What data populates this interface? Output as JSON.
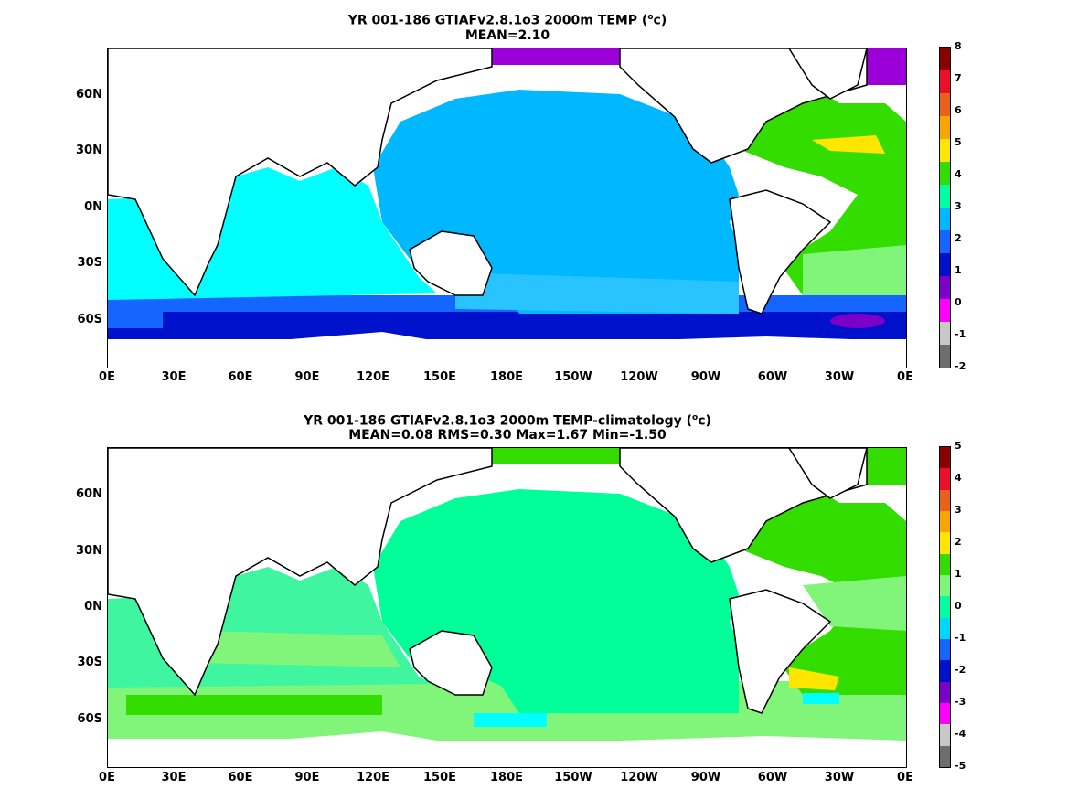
{
  "panels": [
    {
      "id": "top",
      "title_line1": "YR 001-186 GTIAFv2.8.1o3 2000m TEMP (",
      "title_sup": "o",
      "title_line1_end": "c)",
      "title_line2": "MEAN=2.10",
      "y_ticks": [
        "60N",
        "30N",
        "0N",
        "30S",
        "60S"
      ],
      "x_ticks": [
        "0E",
        "30E",
        "60E",
        "90E",
        "120E",
        "150E",
        "180E",
        "150W",
        "120W",
        "90W",
        "60W",
        "30W",
        "0E"
      ],
      "colorbar_labels": [
        "8",
        "7",
        "6",
        "5",
        "4",
        "3",
        "2",
        "1",
        "0",
        "-1",
        "-2"
      ],
      "colorbar_colors": [
        "#8b0000",
        "#e8102a",
        "#e8621c",
        "#f7a500",
        "#ffe600",
        "#33dd00",
        "#00ffa5",
        "#00b8ff",
        "#1566ff",
        "#0011cc",
        "#7b00c8",
        "#ff00ff",
        "#c8c8c8",
        "#6e6e6e"
      ]
    },
    {
      "id": "bottom",
      "title_line1": "YR 001-186 GTIAFv2.8.1o3 2000m TEMP-climatology (",
      "title_sup": "o",
      "title_line1_end": "c)",
      "title_line2": "MEAN=0.08   RMS=0.30   Max=1.67   Min=-1.50",
      "y_ticks": [
        "60N",
        "30N",
        "0N",
        "30S",
        "60S"
      ],
      "x_ticks": [
        "0E",
        "30E",
        "60E",
        "90E",
        "120E",
        "150E",
        "180E",
        "150W",
        "120W",
        "90W",
        "60W",
        "30W",
        "0E"
      ],
      "colorbar_labels": [
        "5",
        "4",
        "3",
        "2",
        "1",
        "0",
        "-1",
        "-2",
        "-3",
        "-4",
        "-5"
      ],
      "colorbar_colors": [
        "#8b0000",
        "#e8102a",
        "#e8621c",
        "#f7a500",
        "#ffe600",
        "#33dd00",
        "#80f57a",
        "#00ffa5",
        "#00d8ff",
        "#1566ff",
        "#0011cc",
        "#7b00c8",
        "#ff00ff",
        "#c8c8c8",
        "#6e6e6e"
      ]
    }
  ],
  "colors": {
    "top_ocean": "#00b8ff",
    "top_indian": "#00ffff",
    "top_southern": "#1566ff",
    "top_deep_south": "#0011cc",
    "top_atlantic": "#33dd00",
    "top_arctic": "#9b00d8",
    "bottom_ocean": "#00ff99",
    "bottom_indian": "#40f5a0",
    "bottom_atlantic": "#33dd00",
    "bottom_southern": "#80f57a"
  }
}
